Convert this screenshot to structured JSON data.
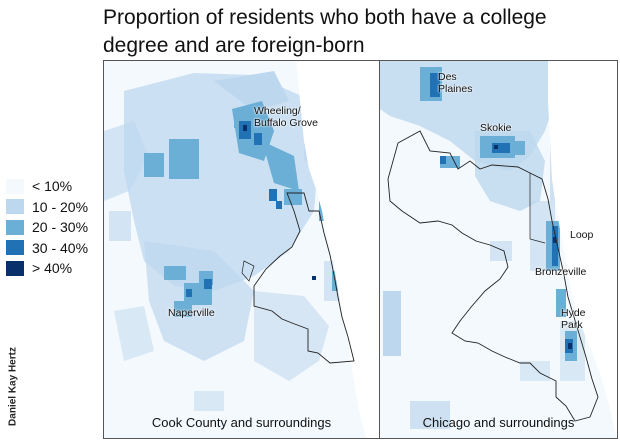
{
  "title": {
    "line1": "Proportion of residents who both have a college",
    "line2": "degree and are foreign-born"
  },
  "legend": [
    {
      "label": "< 10%",
      "color": "#f4f9fd"
    },
    {
      "label": "10 - 20%",
      "color": "#bdd7ee"
    },
    {
      "label": "20 - 30%",
      "color": "#6baed6"
    },
    {
      "label": "30 - 40%",
      "color": "#2171b5"
    },
    {
      "label": "> 40%",
      "color": "#08306b"
    }
  ],
  "credit": "Daniel Kay Hertz",
  "left_map": {
    "caption": "Cook County and surroundings",
    "places": {
      "wheeling_line1": "Wheeling/",
      "wheeling_line2": "Buffalo Grove",
      "naperville": "Naperville"
    }
  },
  "right_map": {
    "caption": "Chicago and surroundings",
    "places": {
      "desplaines_line1": "Des",
      "desplaines_line2": "Plaines",
      "skokie": "Skokie",
      "loop": "Loop",
      "bronzeville": "Bronzeville",
      "hydepark_line1": "Hyde",
      "hydepark_line2": "Park"
    }
  },
  "colors": {
    "water": "#ffffff",
    "lowest": "#f4f9fd",
    "light": "#bdd7ee",
    "mid": "#6baed6",
    "dark": "#2171b5",
    "darkest": "#08306b",
    "border": "#222222"
  }
}
